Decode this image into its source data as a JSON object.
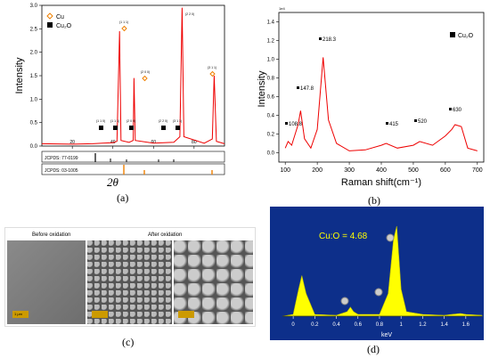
{
  "panels": {
    "a": {
      "label": "(a)",
      "xlabel": "2θ",
      "ylabel": "Intensity",
      "legend": [
        "Cu",
        "Cu₂O"
      ],
      "yticks": [
        "0.0",
        "0.5",
        "1.0",
        "1.5",
        "2.0",
        "2.5",
        "3.0"
      ],
      "xticks": [
        "20",
        "40",
        "60",
        "80"
      ],
      "peak_labels": [
        "(1 1 1)",
        "(2 0 0)",
        "(2 2 0)",
        "(3 1 1)"
      ],
      "cu2o_labels": [
        "(1 1 0)",
        "(1 1 1)",
        "(2 0 0)",
        "(2 2 0)",
        "(3 1 1)"
      ],
      "ref1": "JCPDS: 77-0199",
      "ref2": "JCPDS: 03-1005"
    },
    "b": {
      "label": "(b)",
      "xlabel": "Raman shift(cm⁻¹)",
      "ylabel": "Intensity",
      "legend": "Cu₂O",
      "scale_note": "1e4",
      "yticks": [
        "0.0",
        "0.2",
        "0.4",
        "0.6",
        "0.8",
        "1.0",
        "1.2",
        "1.4"
      ],
      "xticks": [
        "100",
        "200",
        "300",
        "400",
        "500",
        "600",
        "700"
      ],
      "peaks": [
        "108.8",
        "147.8",
        "218.3",
        "415",
        "520",
        "630"
      ]
    },
    "c": {
      "label": "(c)",
      "before": "Before oxidation",
      "after": "After oxidation",
      "scale": "1 μm"
    },
    "d": {
      "label": "(d)",
      "ratio": "Cu:O = 4.68",
      "xlabel": "keV",
      "xticks": [
        "0",
        "0.2",
        "0.4",
        "0.6",
        "0.8",
        "1",
        "1.2",
        "1.4",
        "1.6"
      ]
    }
  },
  "chart_data": [
    {
      "type": "line",
      "title": "",
      "xlabel": "2θ",
      "ylabel": "Intensity",
      "xlim": [
        5,
        95
      ],
      "ylim": [
        0,
        3.0
      ],
      "series": [
        {
          "x": [
            5,
            20,
            30,
            35,
            40,
            42,
            43.3,
            44,
            48,
            50,
            50.4,
            51,
            60,
            70,
            73,
            74.1,
            75,
            85,
            89,
            89.9,
            91,
            95
          ],
          "y": [
            0.05,
            0.04,
            0.05,
            0.06,
            0.07,
            0.1,
            2.45,
            0.12,
            0.08,
            0.12,
            1.45,
            0.12,
            0.06,
            0.08,
            0.2,
            2.95,
            0.2,
            0.06,
            0.15,
            1.5,
            0.1,
            0.05
          ]
        }
      ]
    },
    {
      "type": "line",
      "title": "",
      "xlabel": "Raman shift(cm⁻¹)",
      "ylabel": "Intensity",
      "xlim": [
        80,
        720
      ],
      "ylim": [
        -0.1,
        1.5
      ],
      "series": [
        {
          "x": [
            100,
            108.8,
            120,
            140,
            147.8,
            160,
            180,
            200,
            218.3,
            235,
            260,
            300,
            350,
            400,
            415,
            450,
            500,
            520,
            560,
            600,
            620,
            630,
            650,
            670,
            700
          ],
          "y": [
            0.05,
            0.12,
            0.08,
            0.3,
            0.45,
            0.15,
            0.05,
            0.25,
            1.02,
            0.35,
            0.1,
            0.02,
            0.03,
            0.08,
            0.1,
            0.05,
            0.08,
            0.12,
            0.08,
            0.18,
            0.25,
            0.3,
            0.28,
            0.05,
            0.02
          ]
        }
      ]
    },
    {
      "type": "line",
      "title": "",
      "xlabel": "keV",
      "ylabel": "",
      "xlim": [
        -0.1,
        1.75
      ],
      "ylim": [
        0,
        1
      ],
      "series": [
        {
          "x": [
            -0.1,
            0.0,
            0.05,
            0.08,
            0.12,
            0.2,
            0.4,
            0.5,
            0.53,
            0.56,
            0.6,
            0.8,
            0.88,
            0.93,
            0.96,
            1.0,
            1.05,
            1.2,
            1.4,
            1.55,
            1.6,
            1.75
          ],
          "y": [
            0,
            0.02,
            0.3,
            0.45,
            0.25,
            0.02,
            0.01,
            0.05,
            0.1,
            0.05,
            0.02,
            0.02,
            0.25,
            0.85,
            1.0,
            0.3,
            0.05,
            0.02,
            0.01,
            0.03,
            0.02,
            0.01
          ]
        }
      ]
    }
  ]
}
